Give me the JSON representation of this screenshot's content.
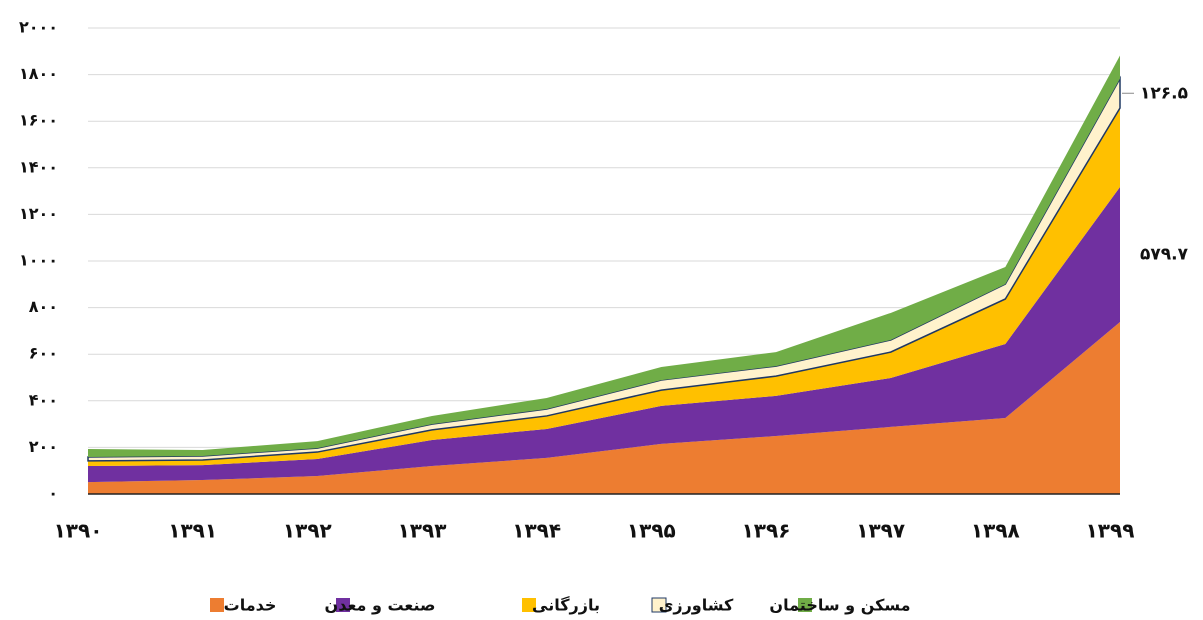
{
  "chart_data": {
    "type": "stacked_area",
    "categories": [
      "۱۳۹۰",
      "۱۳۹۱",
      "۱۳۹۲",
      "۱۳۹۳",
      "۱۳۹۴",
      "۱۳۹۵",
      "۱۳۹۶",
      "۱۳۹۷",
      "۱۳۹۸",
      "۱۳۹۹"
    ],
    "series": [
      {
        "name": "خدمات",
        "color": "#ed7d31",
        "values": [
          51,
          60,
          77,
          120,
          155,
          215,
          249,
          288,
          326,
          738
        ]
      },
      {
        "name": "صنعت و معدن",
        "color": "#7030a0",
        "values": [
          69,
          64,
          73,
          112,
          124,
          163,
          172,
          210,
          318,
          579.7
        ],
        "value_labels": [
          null,
          null,
          null,
          null,
          null,
          null,
          null,
          null,
          null,
          "۵۷۹.۷"
        ]
      },
      {
        "name": "بازرگانی",
        "color": "#ffc000",
        "values": [
          22,
          22,
          30,
          43,
          56,
          68,
          85,
          111,
          193,
          339
        ]
      },
      {
        "name": "کشاورزی",
        "color": "#fff2cc",
        "values": [
          17,
          17,
          17,
          25,
          30,
          43,
          43,
          52,
          64,
          126.5
        ],
        "value_labels": [
          null,
          null,
          null,
          null,
          null,
          null,
          null,
          null,
          null,
          "۱۲۶.۵"
        ]
      },
      {
        "name": "مسکن و ساختمان",
        "color": "#70ad47",
        "values": [
          34,
          26,
          30,
          35,
          47,
          56,
          60,
          116,
          73,
          99
        ]
      }
    ],
    "ylim": [
      0,
      2000
    ],
    "yticks": [
      {
        "value": 0,
        "label": "۰"
      },
      {
        "value": 200,
        "label": "۲۰۰"
      },
      {
        "value": 400,
        "label": "۴۰۰"
      },
      {
        "value": 600,
        "label": "۶۰۰"
      },
      {
        "value": 800,
        "label": "۸۰۰"
      },
      {
        "value": 1000,
        "label": "۱۰۰۰"
      },
      {
        "value": 1200,
        "label": "۱۲۰۰"
      },
      {
        "value": 1400,
        "label": "۱۴۰۰"
      },
      {
        "value": 1600,
        "label": "۱۶۰۰"
      },
      {
        "value": 1800,
        "label": "۱۸۰۰"
      },
      {
        "value": 2000,
        "label": "۲۰۰۰"
      }
    ],
    "grid": true,
    "legend": "bottom"
  }
}
